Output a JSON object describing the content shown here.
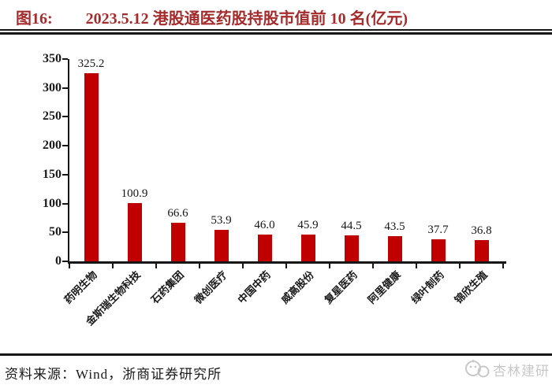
{
  "figure": {
    "label": "图16:",
    "title": "2023.5.12 港股通医药股持股市值前 10 名(亿元)"
  },
  "chart_data": {
    "type": "bar",
    "title": "2023.5.12 港股通医药股持股市值前 10 名(亿元)",
    "categories": [
      "药明生物",
      "金斯瑞生物科技",
      "石药集团",
      "微创医疗",
      "中国中药",
      "威高股份",
      "复星医药",
      "阿里健康",
      "绿叶制药",
      "锦欣生殖"
    ],
    "values": [
      325.2,
      100.9,
      66.6,
      53.9,
      46.0,
      45.9,
      44.5,
      43.5,
      37.7,
      36.8
    ],
    "data_labels": [
      "325.2",
      "100.9",
      "66.6",
      "53.9",
      "46.0",
      "45.9",
      "44.5",
      "43.5",
      "37.7",
      "36.8"
    ],
    "xlabel": "",
    "ylabel": "",
    "ylim": [
      0,
      350
    ],
    "yticks": [
      0,
      50,
      100,
      150,
      200,
      250,
      300,
      350
    ],
    "grid": false,
    "legend": null,
    "bar_color": "#c00000"
  },
  "footer": {
    "source": "资料来源：Wind，浙商证券研究所",
    "watermark": "杏林建研"
  },
  "colors": {
    "title": "#a52c2c",
    "axis": "#161616",
    "bar": "#c00000",
    "watermark": "#c8c8c8"
  }
}
